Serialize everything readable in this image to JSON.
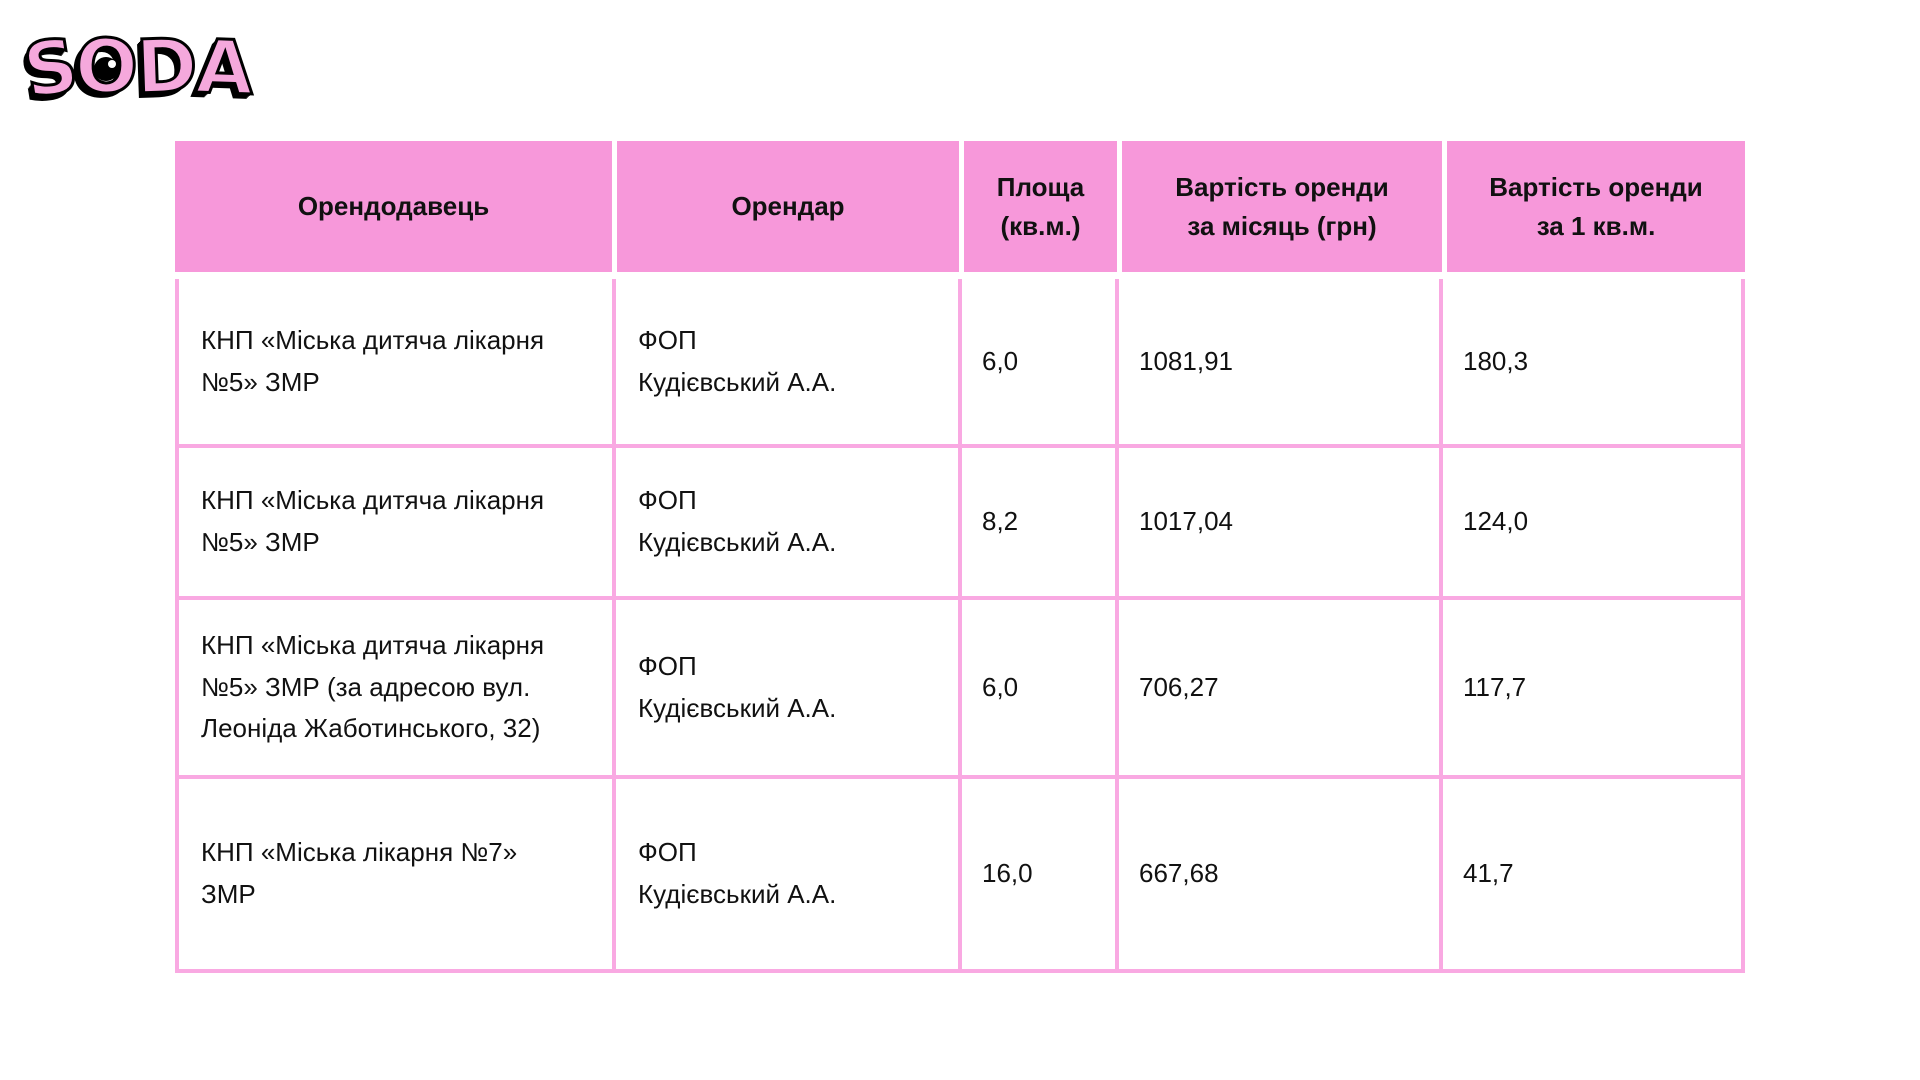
{
  "logo": {
    "letters": [
      "S",
      "O",
      "D",
      "A"
    ]
  },
  "table": {
    "headers": [
      "Орендодавець",
      "Орендар",
      "Площа\n(кв.м.)",
      "Вартість оренди\nза місяць (грн)",
      "Вартість оренди\nза 1 кв.м."
    ],
    "rows": [
      {
        "landlord": "КНП «Міська дитяча лікарня\n№5» ЗМР",
        "tenant": "ФОП\nКудієвський А.А.",
        "area": "6,0",
        "monthly": "1081,91",
        "per_sqm": "180,3"
      },
      {
        "landlord": "КНП «Міська дитяча лікарня\n№5» ЗМР",
        "tenant": "ФОП\nКудієвський А.А.",
        "area": "8,2",
        "monthly": "1017,04",
        "per_sqm": "124,0"
      },
      {
        "landlord": "КНП «Міська дитяча лікарня\n№5» ЗМР (за адресою вул.\nЛеоніда Жаботинського, 32)",
        "tenant": "ФОП\nКудієвський А.А.",
        "area": "6,0",
        "monthly": "706,27",
        "per_sqm": "117,7"
      },
      {
        "landlord": "КНП «Міська лікарня №7»\nЗМР",
        "tenant": "ФОП\nКудієвський А.А.",
        "area": "16,0",
        "monthly": "667,68",
        "per_sqm": "41,7"
      }
    ]
  },
  "chart_data": {
    "type": "table",
    "title": "",
    "columns": [
      "Орендодавець",
      "Орендар",
      "Площа (кв.м.)",
      "Вартість оренди за місяць (грн)",
      "Вартість оренди за 1 кв.м."
    ],
    "rows": [
      [
        "КНП «Міська дитяча лікарня №5» ЗМР",
        "ФОП Кудієвський А.А.",
        "6,0",
        "1081,91",
        "180,3"
      ],
      [
        "КНП «Міська дитяча лікарня №5» ЗМР",
        "ФОП Кудієвський А.А.",
        "8,2",
        "1017,04",
        "124,0"
      ],
      [
        "КНП «Міська дитяча лікарня №5» ЗМР (за адресою вул. Леоніда Жаботинського, 32)",
        "ФОП Кудієвський А.А.",
        "6,0",
        "706,27",
        "117,7"
      ],
      [
        "КНП «Міська лікарня №7» ЗМР",
        "ФОП Кудієвський А.А.",
        "16,0",
        "667,68",
        "41,7"
      ]
    ],
    "values_numeric": {
      "area_sqm": [
        6.0,
        8.2,
        6.0,
        16.0
      ],
      "monthly_rent_uah": [
        1081.91,
        1017.04,
        706.27,
        667.68
      ],
      "rent_per_sqm_uah": [
        180.3,
        124.0,
        117.7,
        41.7
      ]
    }
  },
  "colors": {
    "header_bg": "#F798DA",
    "cell_border": "#F9A9E2",
    "logo_pink": "#F5A8DC",
    "text": "#111111",
    "background": "#FFFFFF"
  }
}
